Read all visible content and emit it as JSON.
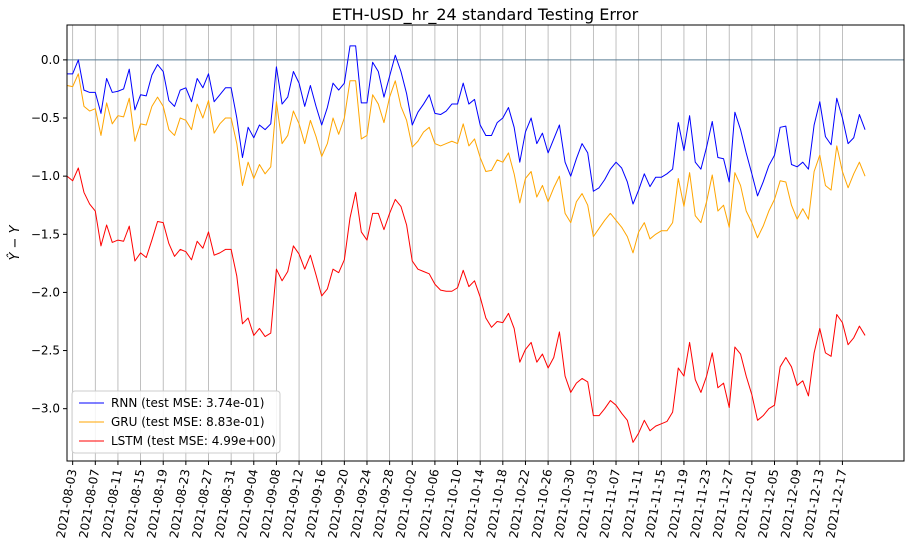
{
  "chart_data": {
    "type": "line",
    "title": "ETH-USD_hr_24 standard Testing Error",
    "xlabel": "",
    "ylabel": "Ŷ − Y",
    "ylim": [
      -3.45,
      0.3
    ],
    "yticks": [
      0.0,
      -0.5,
      -1.0,
      -1.5,
      -2.0,
      -2.5,
      -3.0
    ],
    "ytick_labels": [
      "0.0",
      "−0.5",
      "−1.0",
      "−1.5",
      "−2.0",
      "−2.5",
      "−3.0"
    ],
    "xticks": [
      "2021-08-03",
      "2021-08-07",
      "2021-08-11",
      "2021-08-15",
      "2021-08-19",
      "2021-08-23",
      "2021-08-27",
      "2021-08-31",
      "2021-09-04",
      "2021-09-08",
      "2021-09-12",
      "2021-09-16",
      "2021-09-20",
      "2021-09-24",
      "2021-09-28",
      "2021-10-02",
      "2021-10-06",
      "2021-10-10",
      "2021-10-14",
      "2021-10-18",
      "2021-10-22",
      "2021-10-26",
      "2021-10-30",
      "2021-11-03",
      "2021-11-07",
      "2021-11-11",
      "2021-11-15",
      "2021-11-19",
      "2021-11-23",
      "2021-11-27",
      "2021-12-01",
      "2021-12-05",
      "2021-12-09",
      "2021-12-13",
      "2021-12-17"
    ],
    "x_start": "2021-08-02",
    "x_step_days": 1,
    "grid": "vertical",
    "reference_line": 0.0,
    "legend": "lower-left",
    "series": [
      {
        "name": "RNN (test MSE: 3.74e-01)",
        "color": "#0000ff",
        "values": [
          -0.12,
          -0.12,
          0.0,
          -0.26,
          -0.28,
          -0.28,
          -0.46,
          -0.16,
          -0.28,
          -0.27,
          -0.25,
          -0.08,
          -0.43,
          -0.3,
          -0.31,
          -0.13,
          -0.04,
          -0.1,
          -0.35,
          -0.4,
          -0.26,
          -0.24,
          -0.36,
          -0.16,
          -0.24,
          -0.12,
          -0.36,
          -0.3,
          -0.24,
          -0.24,
          -0.5,
          -0.84,
          -0.58,
          -0.67,
          -0.56,
          -0.6,
          -0.55,
          -0.06,
          -0.38,
          -0.32,
          -0.1,
          -0.2,
          -0.4,
          -0.22,
          -0.4,
          -0.56,
          -0.41,
          -0.2,
          -0.26,
          -0.2,
          0.12,
          0.12,
          -0.37,
          -0.37,
          -0.02,
          -0.1,
          -0.32,
          -0.14,
          0.04,
          -0.1,
          -0.29,
          -0.56,
          -0.45,
          -0.38,
          -0.3,
          -0.46,
          -0.47,
          -0.44,
          -0.38,
          -0.38,
          -0.2,
          -0.38,
          -0.34,
          -0.56,
          -0.65,
          -0.65,
          -0.54,
          -0.5,
          -0.41,
          -0.58,
          -0.88,
          -0.62,
          -0.5,
          -0.72,
          -0.63,
          -0.8,
          -0.68,
          -0.56,
          -0.88,
          -1.0,
          -0.85,
          -0.72,
          -0.8,
          -1.13,
          -1.1,
          -1.03,
          -0.94,
          -0.88,
          -0.93,
          -1.05,
          -1.24,
          -1.12,
          -0.98,
          -1.09,
          -1.01,
          -1.01,
          -0.98,
          -0.94,
          -0.54,
          -0.78,
          -0.48,
          -0.88,
          -0.94,
          -0.75,
          -0.53,
          -0.84,
          -0.85,
          -1.05,
          -0.45,
          -0.6,
          -0.8,
          -0.98,
          -1.17,
          -1.05,
          -0.91,
          -0.82,
          -0.58,
          -0.57,
          -0.9,
          -0.92,
          -0.88,
          -0.94,
          -0.56,
          -0.36,
          -0.66,
          -0.73,
          -0.33,
          -0.5,
          -0.72,
          -0.67,
          -0.47,
          -0.6
        ]
      },
      {
        "name": "GRU (test MSE: 8.83e-01)",
        "color": "#ffa500",
        "values": [
          -0.22,
          -0.23,
          -0.12,
          -0.4,
          -0.44,
          -0.42,
          -0.65,
          -0.37,
          -0.55,
          -0.48,
          -0.49,
          -0.33,
          -0.7,
          -0.55,
          -0.56,
          -0.4,
          -0.32,
          -0.4,
          -0.6,
          -0.65,
          -0.5,
          -0.52,
          -0.6,
          -0.38,
          -0.5,
          -0.35,
          -0.63,
          -0.55,
          -0.5,
          -0.5,
          -0.72,
          -1.08,
          -0.88,
          -1.02,
          -0.9,
          -0.98,
          -0.92,
          -0.36,
          -0.72,
          -0.65,
          -0.44,
          -0.55,
          -0.72,
          -0.52,
          -0.66,
          -0.83,
          -0.72,
          -0.5,
          -0.64,
          -0.5,
          -0.18,
          -0.18,
          -0.68,
          -0.65,
          -0.3,
          -0.38,
          -0.54,
          -0.32,
          -0.18,
          -0.4,
          -0.52,
          -0.75,
          -0.7,
          -0.62,
          -0.58,
          -0.72,
          -0.74,
          -0.72,
          -0.7,
          -0.72,
          -0.55,
          -0.74,
          -0.68,
          -0.84,
          -0.96,
          -0.95,
          -0.86,
          -0.88,
          -0.8,
          -0.98,
          -1.23,
          -1.02,
          -0.96,
          -1.18,
          -1.08,
          -1.22,
          -1.1,
          -1.0,
          -1.32,
          -1.4,
          -1.22,
          -1.15,
          -1.25,
          -1.52,
          -1.45,
          -1.38,
          -1.32,
          -1.38,
          -1.44,
          -1.52,
          -1.66,
          -1.48,
          -1.4,
          -1.54,
          -1.5,
          -1.47,
          -1.47,
          -1.4,
          -1.02,
          -1.26,
          -0.97,
          -1.34,
          -1.4,
          -1.22,
          -0.99,
          -1.3,
          -1.25,
          -1.44,
          -0.97,
          -1.08,
          -1.3,
          -1.4,
          -1.53,
          -1.43,
          -1.3,
          -1.2,
          -1.04,
          -1.05,
          -1.25,
          -1.37,
          -1.28,
          -1.37,
          -0.96,
          -0.82,
          -1.08,
          -1.12,
          -0.74,
          -0.96,
          -1.1,
          -0.98,
          -0.88,
          -1.0
        ]
      },
      {
        "name": "LSTM (test MSE: 4.99e+00)",
        "color": "#ff0000",
        "values": [
          -1.0,
          -1.04,
          -0.93,
          -1.14,
          -1.24,
          -1.3,
          -1.6,
          -1.42,
          -1.57,
          -1.55,
          -1.56,
          -1.43,
          -1.73,
          -1.66,
          -1.7,
          -1.55,
          -1.39,
          -1.4,
          -1.58,
          -1.69,
          -1.63,
          -1.65,
          -1.72,
          -1.56,
          -1.62,
          -1.48,
          -1.68,
          -1.66,
          -1.63,
          -1.63,
          -1.86,
          -2.27,
          -2.22,
          -2.37,
          -2.31,
          -2.38,
          -2.35,
          -1.8,
          -1.9,
          -1.82,
          -1.6,
          -1.67,
          -1.8,
          -1.68,
          -1.85,
          -2.03,
          -1.97,
          -1.8,
          -1.83,
          -1.72,
          -1.36,
          -1.14,
          -1.48,
          -1.55,
          -1.32,
          -1.32,
          -1.46,
          -1.32,
          -1.2,
          -1.26,
          -1.42,
          -1.73,
          -1.8,
          -1.82,
          -1.84,
          -1.93,
          -1.98,
          -1.99,
          -1.99,
          -1.96,
          -1.81,
          -1.95,
          -1.9,
          -2.04,
          -2.22,
          -2.3,
          -2.25,
          -2.26,
          -2.18,
          -2.31,
          -2.6,
          -2.49,
          -2.43,
          -2.6,
          -2.53,
          -2.65,
          -2.56,
          -2.34,
          -2.72,
          -2.86,
          -2.78,
          -2.74,
          -2.77,
          -3.06,
          -3.06,
          -3.0,
          -2.93,
          -2.97,
          -3.04,
          -3.1,
          -3.29,
          -3.21,
          -3.1,
          -3.19,
          -3.15,
          -3.13,
          -3.11,
          -3.03,
          -2.65,
          -2.72,
          -2.43,
          -2.75,
          -2.86,
          -2.72,
          -2.52,
          -2.82,
          -2.78,
          -2.99,
          -2.47,
          -2.53,
          -2.72,
          -2.88,
          -3.1,
          -3.06,
          -3.0,
          -2.97,
          -2.64,
          -2.56,
          -2.64,
          -2.8,
          -2.76,
          -2.89,
          -2.52,
          -2.31,
          -2.52,
          -2.55,
          -2.19,
          -2.26,
          -2.45,
          -2.39,
          -2.29,
          -2.37
        ]
      }
    ]
  }
}
